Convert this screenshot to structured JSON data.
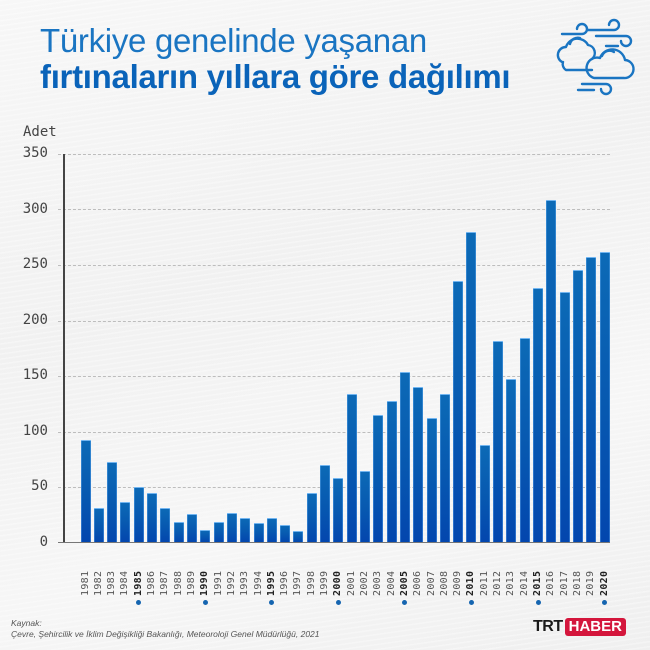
{
  "title": {
    "line1": "Türkiye genelinde yaşanan",
    "line2": "fırtınaların yıllara göre dağılımı"
  },
  "icon": "clouds-wind-icon",
  "colors": {
    "title_light": "#1a75c2",
    "title_bold": "#0a63b9",
    "bar": "#0758b0",
    "highlight_dot": "#1565b0",
    "logo_red": "#d4163c"
  },
  "source": {
    "label": "Kaynak:",
    "text": "Çevre, Şehircilik ve İklim Değişikliği Bakanlığı, Meteoroloji Genel Müdürlüğü, 2021"
  },
  "logo": {
    "trt": "TRT",
    "haber": "HABER"
  },
  "chart_data": {
    "type": "bar",
    "title": "Türkiye genelinde yaşanan fırtınaların yıllara göre dağılımı",
    "xlabel": "",
    "ylabel": "Adet",
    "ylim": [
      0,
      350
    ],
    "yticks": [
      "350",
      "300",
      "250",
      "200",
      "150",
      "100",
      "50",
      "0"
    ],
    "grid": true,
    "legend": null,
    "highlighted_years": [
      "1985",
      "1990",
      "1995",
      "2000",
      "2005",
      "2010",
      "2015",
      "2020"
    ],
    "categories": [
      "1981",
      "1982",
      "1983",
      "1984",
      "1985",
      "1986",
      "1987",
      "1988",
      "1989",
      "1990",
      "1991",
      "1992",
      "1993",
      "1994",
      "1995",
      "1996",
      "1997",
      "1998",
      "1999",
      "2000",
      "2001",
      "2002",
      "2003",
      "2004",
      "2005",
      "2006",
      "2007",
      "2008",
      "2009",
      "2010",
      "2011",
      "2012",
      "2013",
      "2014",
      "2015",
      "2016",
      "2017",
      "2018",
      "2019",
      "2020"
    ],
    "values": [
      92,
      31,
      72,
      36,
      50,
      44,
      31,
      18,
      25,
      11,
      18,
      26,
      22,
      17,
      22,
      15,
      10,
      44,
      69,
      58,
      133,
      64,
      114,
      127,
      153,
      140,
      112,
      133,
      235,
      279,
      87,
      181,
      147,
      184,
      229,
      308,
      225,
      245,
      257,
      261
    ]
  }
}
